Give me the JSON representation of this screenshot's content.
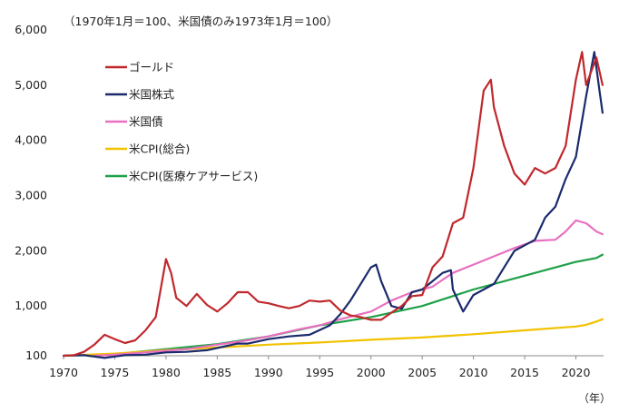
{
  "chart_data": {
    "type": "line",
    "note": "（1970年1月＝100、米国債のみ1973年1月＝100）",
    "xlabel": "（年）",
    "ylabel": "",
    "x_ticks": [
      "1970",
      "1975",
      "1980",
      "1985",
      "1990",
      "1995",
      "2000",
      "2005",
      "2010",
      "2015",
      "2020"
    ],
    "y_ticks": [
      "100",
      "1,000",
      "2,000",
      "3,000",
      "4,000",
      "5,000",
      "6,000"
    ],
    "xlim": [
      1970,
      2022.7
    ],
    "ylim": [
      100,
      6000
    ],
    "grid": false,
    "legend_position": "top-left",
    "series": [
      {
        "name": "ゴールド",
        "color": "#c0282d",
        "points": [
          [
            1970,
            100
          ],
          [
            1971,
            110
          ],
          [
            1972,
            170
          ],
          [
            1973,
            300
          ],
          [
            1974,
            480
          ],
          [
            1975,
            400
          ],
          [
            1976,
            330
          ],
          [
            1977,
            380
          ],
          [
            1978,
            560
          ],
          [
            1979,
            800
          ],
          [
            1980,
            1850
          ],
          [
            1980.5,
            1600
          ],
          [
            1981,
            1150
          ],
          [
            1982,
            1000
          ],
          [
            1983,
            1220
          ],
          [
            1984,
            1020
          ],
          [
            1985,
            900
          ],
          [
            1986,
            1050
          ],
          [
            1987,
            1250
          ],
          [
            1988,
            1250
          ],
          [
            1989,
            1080
          ],
          [
            1990,
            1050
          ],
          [
            1991,
            1000
          ],
          [
            1992,
            960
          ],
          [
            1993,
            1000
          ],
          [
            1994,
            1100
          ],
          [
            1995,
            1080
          ],
          [
            1996,
            1100
          ],
          [
            1997,
            920
          ],
          [
            1998,
            830
          ],
          [
            1999,
            800
          ],
          [
            2000,
            750
          ],
          [
            2001,
            750
          ],
          [
            2002,
            880
          ],
          [
            2003,
            1000
          ],
          [
            2004,
            1180
          ],
          [
            2005,
            1200
          ],
          [
            2006,
            1700
          ],
          [
            2007,
            1900
          ],
          [
            2008,
            2500
          ],
          [
            2009,
            2600
          ],
          [
            2010,
            3500
          ],
          [
            2011,
            4900
          ],
          [
            2011.7,
            5100
          ],
          [
            2012,
            4600
          ],
          [
            2013,
            3900
          ],
          [
            2014,
            3400
          ],
          [
            2015,
            3200
          ],
          [
            2016,
            3500
          ],
          [
            2017,
            3400
          ],
          [
            2018,
            3500
          ],
          [
            2019,
            3900
          ],
          [
            2020,
            5100
          ],
          [
            2020.6,
            5600
          ],
          [
            2021,
            5000
          ],
          [
            2022,
            5500
          ],
          [
            2022.6,
            5000
          ]
        ]
      },
      {
        "name": "米国株式",
        "color": "#1a2a6c",
        "points": [
          [
            1970,
            100
          ],
          [
            1972,
            110
          ],
          [
            1974,
            60
          ],
          [
            1976,
            110
          ],
          [
            1978,
            120
          ],
          [
            1980,
            160
          ],
          [
            1982,
            170
          ],
          [
            1984,
            200
          ],
          [
            1986,
            280
          ],
          [
            1987,
            320
          ],
          [
            1988,
            320
          ],
          [
            1990,
            400
          ],
          [
            1992,
            450
          ],
          [
            1994,
            480
          ],
          [
            1996,
            650
          ],
          [
            1997,
            850
          ],
          [
            1998,
            1100
          ],
          [
            1999,
            1400
          ],
          [
            2000,
            1700
          ],
          [
            2000.5,
            1750
          ],
          [
            2001,
            1450
          ],
          [
            2002,
            1000
          ],
          [
            2003,
            950
          ],
          [
            2004,
            1250
          ],
          [
            2005,
            1300
          ],
          [
            2006,
            1450
          ],
          [
            2007,
            1600
          ],
          [
            2007.8,
            1650
          ],
          [
            2008,
            1300
          ],
          [
            2009,
            900
          ],
          [
            2010,
            1200
          ],
          [
            2011,
            1300
          ],
          [
            2012,
            1400
          ],
          [
            2013,
            1700
          ],
          [
            2014,
            2000
          ],
          [
            2015,
            2100
          ],
          [
            2016,
            2200
          ],
          [
            2017,
            2600
          ],
          [
            2018,
            2800
          ],
          [
            2019,
            3300
          ],
          [
            2020,
            3700
          ],
          [
            2021,
            4800
          ],
          [
            2021.8,
            5600
          ],
          [
            2022.3,
            4900
          ],
          [
            2022.6,
            4500
          ]
        ]
      },
      {
        "name": "米国債",
        "color": "#e870c0",
        "points": [
          [
            1973,
            100
          ],
          [
            1975,
            120
          ],
          [
            1978,
            160
          ],
          [
            1980,
            190
          ],
          [
            1982,
            220
          ],
          [
            1985,
            300
          ],
          [
            1988,
            380
          ],
          [
            1990,
            450
          ],
          [
            1993,
            580
          ],
          [
            1995,
            650
          ],
          [
            1997,
            760
          ],
          [
            2000,
            900
          ],
          [
            2002,
            1100
          ],
          [
            2004,
            1250
          ],
          [
            2006,
            1350
          ],
          [
            2008,
            1600
          ],
          [
            2010,
            1750
          ],
          [
            2012,
            1900
          ],
          [
            2014,
            2050
          ],
          [
            2016,
            2180
          ],
          [
            2018,
            2200
          ],
          [
            2019,
            2350
          ],
          [
            2020,
            2550
          ],
          [
            2021,
            2500
          ],
          [
            2022,
            2350
          ],
          [
            2022.6,
            2300
          ]
        ]
      },
      {
        "name": "米CPI(総合)",
        "color": "#f2c200",
        "points": [
          [
            1970,
            100
          ],
          [
            1975,
            140
          ],
          [
            1980,
            200
          ],
          [
            1985,
            250
          ],
          [
            1990,
            300
          ],
          [
            1995,
            340
          ],
          [
            2000,
            390
          ],
          [
            2005,
            430
          ],
          [
            2010,
            490
          ],
          [
            2015,
            560
          ],
          [
            2020,
            630
          ],
          [
            2021,
            660
          ],
          [
            2022,
            720
          ],
          [
            2022.6,
            760
          ]
        ]
      },
      {
        "name": "米CPI(医療ケアサービス)",
        "color": "#1ea048",
        "points": [
          [
            1970,
            100
          ],
          [
            1975,
            130
          ],
          [
            1980,
            220
          ],
          [
            1985,
            310
          ],
          [
            1990,
            450
          ],
          [
            1995,
            650
          ],
          [
            2000,
            800
          ],
          [
            2005,
            1000
          ],
          [
            2010,
            1300
          ],
          [
            2015,
            1550
          ],
          [
            2020,
            1800
          ],
          [
            2022,
            1870
          ],
          [
            2022.6,
            1930
          ]
        ]
      }
    ]
  }
}
